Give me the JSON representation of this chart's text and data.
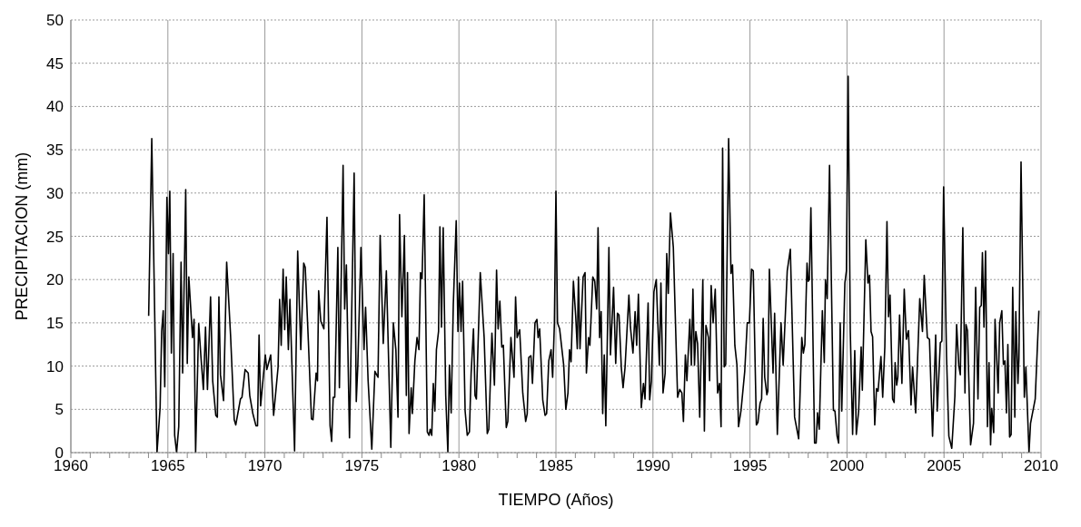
{
  "chart_data": {
    "type": "line",
    "xlabel": "TIEMPO (Años)",
    "ylabel": "PRECIPITACION (mm)",
    "xlim": [
      1960,
      2010
    ],
    "ylim": [
      0,
      50
    ],
    "xticks": [
      1960,
      {
        "value": 1961,
        "label": null
      },
      {
        "value": 1962,
        "label": null
      },
      {
        "value": 1963,
        "label": null
      },
      {
        "value": 1964,
        "label": null
      },
      1965,
      {
        "value": 1966,
        "label": null
      },
      {
        "value": 1967,
        "label": null
      },
      {
        "value": 1968,
        "label": null
      },
      {
        "value": 1969,
        "label": null
      },
      1970,
      {
        "value": 1971,
        "label": null
      },
      {
        "value": 1972,
        "label": null
      },
      {
        "value": 1973,
        "label": null
      },
      {
        "value": 1974,
        "label": null
      },
      1975,
      {
        "value": 1976,
        "label": null
      },
      {
        "value": 1977,
        "label": null
      },
      {
        "value": 1978,
        "label": null
      },
      {
        "value": 1979,
        "label": null
      },
      1980,
      {
        "value": 1981,
        "label": null
      },
      {
        "value": 1982,
        "label": null
      },
      {
        "value": 1983,
        "label": null
      },
      {
        "value": 1984,
        "label": null
      },
      1985,
      {
        "value": 1986,
        "label": null
      },
      {
        "value": 1987,
        "label": null
      },
      {
        "value": 1988,
        "label": null
      },
      {
        "value": 1989,
        "label": null
      },
      1990,
      {
        "value": 1991,
        "label": null
      },
      {
        "value": 1992,
        "label": null
      },
      {
        "value": 1993,
        "label": null
      },
      {
        "value": 1994,
        "label": null
      },
      1995,
      {
        "value": 1996,
        "label": null
      },
      {
        "value": 1997,
        "label": null
      },
      {
        "value": 1998,
        "label": null
      },
      {
        "value": 1999,
        "label": null
      },
      2000,
      {
        "value": 2001,
        "label": null
      },
      {
        "value": 2002,
        "label": null
      },
      {
        "value": 2003,
        "label": null
      },
      {
        "value": 2004,
        "label": null
      },
      2005,
      {
        "value": 2006,
        "label": null
      },
      {
        "value": 2007,
        "label": null
      },
      {
        "value": 2008,
        "label": null
      },
      {
        "value": 2009,
        "label": null
      },
      2010
    ],
    "yticks": [
      0,
      5,
      10,
      15,
      20,
      25,
      30,
      35,
      40,
      45,
      50
    ],
    "grid": true,
    "marker": "none",
    "line_style": "solid",
    "x": [
      1964.01,
      1964.17,
      1964.44,
      1964.6,
      1964.68,
      1964.76,
      1964.84,
      1964.95,
      1965.03,
      1965.1,
      1965.18,
      1965.27,
      1965.35,
      1965.45,
      1965.56,
      1965.68,
      1965.76,
      1965.92,
      1966.0,
      1966.08,
      1966.27,
      1966.35,
      1966.43,
      1966.59,
      1966.7,
      1966.83,
      1966.94,
      1967.04,
      1967.2,
      1967.31,
      1967.47,
      1967.55,
      1967.63,
      1967.71,
      1967.87,
      1968.03,
      1968.23,
      1968.42,
      1968.5,
      1968.74,
      1968.82,
      1968.98,
      1969.14,
      1969.22,
      1969.38,
      1969.54,
      1969.62,
      1969.7,
      1969.78,
      1970.02,
      1970.1,
      1970.3,
      1970.45,
      1970.68,
      1970.76,
      1970.84,
      1970.94,
      1971.02,
      1971.1,
      1971.21,
      1971.29,
      1971.53,
      1971.69,
      1971.85,
      1972.0,
      1972.08,
      1972.24,
      1972.4,
      1972.48,
      1972.64,
      1972.71,
      1972.77,
      1972.88,
      1973.04,
      1973.2,
      1973.36,
      1973.44,
      1973.52,
      1973.6,
      1973.76,
      1973.84,
      1974.03,
      1974.11,
      1974.2,
      1974.36,
      1974.6,
      1974.71,
      1974.79,
      1974.95,
      1975.11,
      1975.19,
      1975.32,
      1975.51,
      1975.67,
      1975.83,
      1975.94,
      1976.1,
      1976.26,
      1976.49,
      1976.62,
      1976.75,
      1976.86,
      1976.94,
      1977.06,
      1977.19,
      1977.29,
      1977.35,
      1977.43,
      1977.54,
      1977.6,
      1977.73,
      1977.84,
      1977.94,
      1978.02,
      1978.1,
      1978.21,
      1978.37,
      1978.46,
      1978.52,
      1978.6,
      1978.68,
      1978.76,
      1978.84,
      1978.95,
      1979.02,
      1979.1,
      1979.19,
      1979.32,
      1979.43,
      1979.51,
      1979.6,
      1979.71,
      1979.86,
      1979.95,
      1980.03,
      1980.11,
      1980.19,
      1980.32,
      1980.43,
      1980.54,
      1980.63,
      1980.75,
      1980.83,
      1980.9,
      1981.1,
      1981.3,
      1981.46,
      1981.54,
      1981.7,
      1981.83,
      1981.94,
      1982.02,
      1982.11,
      1982.21,
      1982.29,
      1982.44,
      1982.52,
      1982.68,
      1982.84,
      1982.92,
      1983.0,
      1983.13,
      1983.29,
      1983.44,
      1983.52,
      1983.6,
      1983.71,
      1983.79,
      1983.92,
      1984.02,
      1984.08,
      1984.16,
      1984.32,
      1984.44,
      1984.52,
      1984.63,
      1984.75,
      1984.83,
      1984.92,
      1985.0,
      1985.08,
      1985.19,
      1985.32,
      1985.4,
      1985.51,
      1985.62,
      1985.7,
      1985.78,
      1985.9,
      1986.02,
      1986.1,
      1986.16,
      1986.24,
      1986.4,
      1986.5,
      1986.57,
      1986.68,
      1986.75,
      1986.9,
      1987.0,
      1987.1,
      1987.17,
      1987.25,
      1987.33,
      1987.41,
      1987.49,
      1987.57,
      1987.65,
      1987.73,
      1987.81,
      1987.97,
      1988.08,
      1988.17,
      1988.25,
      1988.37,
      1988.46,
      1988.56,
      1988.76,
      1988.84,
      1988.97,
      1989.08,
      1989.16,
      1989.25,
      1989.4,
      1989.51,
      1989.59,
      1989.75,
      1989.83,
      1989.92,
      1990.05,
      1990.17,
      1990.33,
      1990.41,
      1990.52,
      1990.63,
      1990.71,
      1990.79,
      1990.9,
      1991.05,
      1991.27,
      1991.38,
      1991.49,
      1991.57,
      1991.67,
      1991.75,
      1991.9,
      1991.98,
      1992.06,
      1992.14,
      1992.21,
      1992.3,
      1992.41,
      1992.57,
      1992.65,
      1992.73,
      1992.86,
      1992.92,
      1993.0,
      1993.1,
      1993.21,
      1993.33,
      1993.43,
      1993.51,
      1993.59,
      1993.67,
      1993.75,
      1993.9,
      1994.02,
      1994.1,
      1994.22,
      1994.33,
      1994.41,
      1994.54,
      1994.73,
      1994.86,
      1994.97,
      1995.08,
      1995.17,
      1995.33,
      1995.41,
      1995.52,
      1995.6,
      1995.68,
      1995.76,
      1995.87,
      1995.92,
      1996.0,
      1996.19,
      1996.27,
      1996.41,
      1996.6,
      1996.71,
      1996.92,
      1997.08,
      1997.3,
      1997.51,
      1997.67,
      1997.75,
      1997.83,
      1997.94,
      1998.0,
      1998.06,
      1998.14,
      1998.33,
      1998.41,
      1998.48,
      1998.57,
      1998.73,
      1998.83,
      1998.89,
      1998.98,
      1999.1,
      1999.3,
      1999.38,
      1999.49,
      1999.57,
      1999.65,
      1999.73,
      1999.89,
      1999.97,
      2000.06,
      2000.17,
      2000.29,
      2000.4,
      2000.48,
      2000.6,
      2000.73,
      2000.79,
      2000.97,
      2001.08,
      2001.16,
      2001.24,
      2001.32,
      2001.43,
      2001.52,
      2001.6,
      2001.75,
      2001.84,
      2001.95,
      2002.06,
      2002.14,
      2002.22,
      2002.35,
      2002.43,
      2002.48,
      2002.56,
      2002.62,
      2002.71,
      2002.83,
      2002.95,
      2003.06,
      2003.17,
      2003.3,
      2003.38,
      2003.54,
      2003.75,
      2003.89,
      2003.98,
      2004.14,
      2004.25,
      2004.41,
      2004.57,
      2004.65,
      2004.81,
      2004.89,
      2004.98,
      2005.13,
      2005.25,
      2005.4,
      2005.56,
      2005.65,
      2005.76,
      2005.84,
      2005.97,
      2006.08,
      2006.13,
      2006.21,
      2006.37,
      2006.52,
      2006.63,
      2006.75,
      2006.84,
      2006.92,
      2006.98,
      2007.06,
      2007.14,
      2007.24,
      2007.32,
      2007.4,
      2007.46,
      2007.56,
      2007.63,
      2007.79,
      2007.87,
      2007.98,
      2008.06,
      2008.14,
      2008.22,
      2008.29,
      2008.38,
      2008.46,
      2008.54,
      2008.65,
      2008.7,
      2008.81,
      2008.86,
      2008.97,
      2009.14,
      2009.22,
      2009.38,
      2009.46,
      2009.7,
      2009.89
    ],
    "series": [
      {
        "color": "#000000",
        "values": [
          15.8,
          36.3,
          0,
          5.2,
          14,
          16.4,
          7.6,
          29.5,
          23,
          30.2,
          11.5,
          23,
          2,
          0,
          3,
          22,
          9.2,
          30.4,
          10.3,
          20.3,
          13.3,
          15.4,
          0,
          14.9,
          11.2,
          7.3,
          14.5,
          7.3,
          18,
          8.3,
          4.3,
          4.1,
          18,
          9,
          6,
          22,
          13.6,
          3.8,
          3.2,
          6.2,
          6.4,
          9.6,
          9.2,
          6.6,
          4.5,
          3.1,
          3.1,
          13.6,
          5.4,
          11.3,
          9.6,
          11.3,
          4.3,
          9.9,
          17.7,
          12.4,
          21.2,
          14.2,
          20.3,
          11.9,
          17.7,
          0.2,
          23.3,
          11.9,
          21.9,
          21.4,
          12.9,
          3.9,
          3.8,
          9.2,
          8.3,
          18.7,
          15.2,
          14.3,
          27.2,
          3.1,
          1.3,
          6.4,
          6.4,
          23.7,
          7.5,
          33.2,
          16.6,
          21.7,
          1.7,
          32.3,
          5.9,
          10.1,
          23.7,
          11.9,
          16.8,
          8.3,
          0.4,
          9.4,
          8.7,
          25.1,
          12.6,
          21,
          0.6,
          15,
          11.9,
          4.1,
          27.5,
          15.7,
          25.1,
          6.6,
          20.8,
          2.2,
          7.5,
          4.5,
          10.6,
          13.3,
          11.9,
          20.8,
          20.1,
          29.8,
          2.4,
          2,
          2.7,
          2,
          8,
          4.8,
          11.9,
          14,
          26.1,
          14.5,
          26,
          6.6,
          0,
          10.1,
          4.6,
          17.1,
          26.8,
          14,
          19.6,
          14,
          19.8,
          4.8,
          2,
          2.4,
          9.2,
          14.3,
          6.6,
          6.2,
          20.8,
          13.3,
          2.2,
          2.7,
          13.8,
          7.8,
          21.1,
          14.3,
          17.5,
          12.2,
          12.4,
          2.9,
          3.6,
          13.3,
          8.7,
          18,
          13.3,
          14.2,
          6.9,
          3.6,
          4.5,
          11,
          11.2,
          8,
          15,
          15.4,
          13.3,
          14.3,
          6.1,
          4.3,
          4.5,
          10.6,
          11.9,
          8.7,
          14.9,
          30.2,
          15,
          14.3,
          11.7,
          10.1,
          5,
          6.9,
          11.9,
          10.5,
          19.8,
          15.7,
          12,
          20.3,
          12,
          20.3,
          20.8,
          9.2,
          13.3,
          12.4,
          20.3,
          19.8,
          16.6,
          26,
          13.3,
          16.3,
          4.5,
          11.3,
          3.1,
          13.3,
          23.7,
          11.3,
          19.1,
          10.3,
          16.1,
          15.9,
          9.8,
          7.5,
          9.8,
          18.2,
          14.5,
          11.5,
          16.3,
          12.4,
          18.3,
          5.2,
          8,
          6.2,
          17.3,
          6.1,
          8.3,
          18.6,
          20,
          10.1,
          19.6,
          6.9,
          9.2,
          23,
          18.4,
          27.7,
          23.7,
          6.4,
          7.3,
          6.9,
          3.6,
          11.3,
          8.3,
          15.4,
          10.1,
          18.9,
          10.1,
          14,
          12.6,
          4.1,
          20,
          2.5,
          14.7,
          13.3,
          8.3,
          19.3,
          15,
          18.9,
          6.9,
          8,
          3,
          35.2,
          9.9,
          10.2,
          36.3,
          20.7,
          21.7,
          12.4,
          10.1,
          3,
          4.9,
          9.4,
          15,
          15,
          21.2,
          21,
          3.2,
          3.5,
          5.7,
          6.2,
          15.5,
          8.7,
          6.7,
          7.1,
          21.2,
          9.2,
          16.1,
          2.1,
          15,
          10.1,
          21,
          23.5,
          4.1,
          1.6,
          13.3,
          11.5,
          12.5,
          21.9,
          19.8,
          20,
          28.3,
          1.1,
          1.1,
          4.6,
          2.7,
          16.4,
          10.4,
          20,
          17.8,
          33.2,
          4.9,
          4.8,
          1.9,
          1.1,
          15,
          4.8,
          19.6,
          21,
          43.5,
          14,
          2.1,
          11.8,
          2.1,
          4.8,
          12.2,
          7.2,
          24.6,
          19.6,
          20.5,
          14,
          13.4,
          3.2,
          7.4,
          7.1,
          11.1,
          6.4,
          12.2,
          26.7,
          15.7,
          18.2,
          6.2,
          5.8,
          10.4,
          7.8,
          8.7,
          15.9,
          8,
          18.9,
          13.1,
          14.1,
          5.5,
          9.9,
          4.6,
          17.8,
          14,
          20.5,
          13.3,
          13.1,
          1.9,
          13.6,
          4.8,
          12.7,
          12.9,
          30.7,
          11.1,
          1.9,
          0.5,
          6.5,
          14.8,
          10.1,
          9,
          26,
          6.9,
          14.8,
          14.1,
          0.9,
          3.4,
          19.1,
          6.2,
          16.8,
          17,
          23.1,
          14.5,
          23.3,
          3,
          10.4,
          0.9,
          5.1,
          2.3,
          15.4,
          6.9,
          15,
          16.4,
          10.2,
          10.6,
          4.6,
          12.5,
          1.8,
          2.1,
          19.1,
          4.1,
          16.3,
          8,
          10.8,
          33.6,
          6.4,
          9.9,
          0,
          3.4,
          6.2,
          16.4
        ]
      }
    ]
  }
}
